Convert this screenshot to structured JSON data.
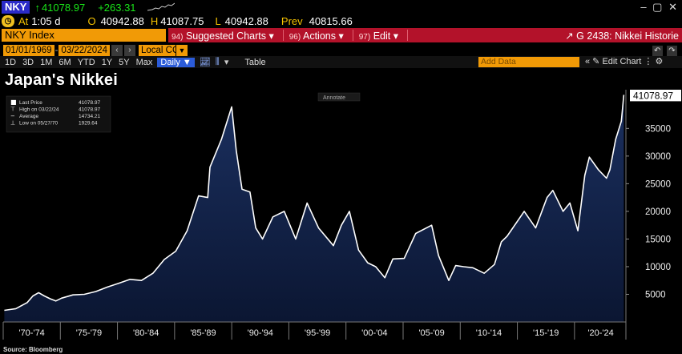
{
  "ticker": {
    "symbol": "NKY",
    "last": "41078.97",
    "change": "+263.31"
  },
  "quote": {
    "at_label": "At",
    "time": "1:05 d",
    "open_label": "O",
    "open": "40942.88",
    "high_label": "H",
    "high": "41087.75",
    "low_label": "L",
    "low": "40942.88",
    "prev_label": "Prev",
    "prev": "40815.66"
  },
  "window_controls": {
    "minimize": "–",
    "restore": "▢",
    "close": "✕"
  },
  "function_bar": {
    "index_name": "NKY Index",
    "menus": [
      {
        "num": "94)",
        "label": "Suggested Charts ▾"
      },
      {
        "num": "96)",
        "label": "Actions ▾"
      },
      {
        "num": "97)",
        "label": "Edit ▾"
      }
    ],
    "right_title": "G 2438: Nikkei Historie"
  },
  "date_controls": {
    "start": "01/01/1969",
    "end": "03/22/2024",
    "currency": "Local CCY"
  },
  "period_bar": {
    "periods": [
      "1D",
      "3D",
      "1M",
      "6M",
      "YTD",
      "1Y",
      "5Y",
      "Max"
    ],
    "frequency": "Daily ▼",
    "table": "Table",
    "add_data_placeholder": "Add Data",
    "edit_chart": "Edit Chart"
  },
  "chart_title": "Japan's Nikkei",
  "source": "Source: Bloomberg",
  "colors": {
    "orange": "#f19a06",
    "red_bar": "#b3122a",
    "green": "#19e619",
    "area_top": "#17284a",
    "area_bottom": "#0a1430"
  },
  "chart_data": {
    "type": "area",
    "title": "Japan's Nikkei",
    "series_name": "Last Price",
    "last_value_label": "41078.97",
    "legend": [
      {
        "label": "Last Price",
        "value": "41078.97"
      },
      {
        "label": "High on 03/22/24",
        "value": "41078.97"
      },
      {
        "label": "Average",
        "value": "14734.21"
      },
      {
        "label": "Low on 05/27/70",
        "value": "1929.64"
      }
    ],
    "annotate_label": "Annotate",
    "ylim": [
      0,
      42000
    ],
    "xlim": [
      1969.9,
      2024.4
    ],
    "y_ticks": [
      5000,
      10000,
      15000,
      20000,
      25000,
      30000,
      35000
    ],
    "y_tick_labels": [
      "5000",
      "10000",
      "15000",
      "20000",
      "25000",
      "30000",
      "35000"
    ],
    "x_tick_years": [
      1969.9,
      1974.9,
      1979.9,
      1984.9,
      1989.9,
      1994.9,
      1999.9,
      2004.9,
      2009.9,
      2014.9,
      2019.9,
      2024.4
    ],
    "x_label_years": [
      1972.4,
      1977.4,
      1982.4,
      1987.4,
      1992.4,
      1997.4,
      2002.4,
      2007.4,
      2012.4,
      2017.4,
      2022.2
    ],
    "x_labels": [
      "'70-'74",
      "'75-'79",
      "'80-'84",
      "'85-'89",
      "'90-'94",
      "'95-'99",
      "'00-'04",
      "'05-'09",
      "'10-'14",
      "'15-'19",
      "'20-'24"
    ],
    "x": [
      1970,
      1971,
      1972,
      1972.5,
      1973,
      1973.5,
      1974,
      1974.5,
      1975,
      1976,
      1977,
      1978,
      1979,
      1980,
      1981,
      1982,
      1983,
      1984,
      1985,
      1986,
      1987,
      1987.8,
      1988,
      1989,
      1989.9,
      1990.3,
      1990.8,
      1991.5,
      1992,
      1992.6,
      1993.5,
      1994.5,
      1995.5,
      1996.5,
      1997.5,
      1998.8,
      1999.5,
      2000.2,
      2001,
      2001.8,
      2002.5,
      2003.3,
      2004,
      2005,
      2006,
      2007.4,
      2008,
      2008.9,
      2009.5,
      2010.2,
      2011,
      2012,
      2012.9,
      2013.5,
      2014,
      2015.5,
      2016.5,
      2017.5,
      2018,
      2018.9,
      2019.5,
      2020.2,
      2020.8,
      2021.2,
      2022,
      2022.7,
      2023,
      2023.5,
      2024,
      2024.22
    ],
    "y": [
      2100,
      2400,
      3500,
      4700,
      5300,
      4700,
      4200,
      3800,
      4300,
      4900,
      5000,
      5500,
      6300,
      7000,
      7700,
      7500,
      8800,
      11300,
      12800,
      16500,
      22800,
      22500,
      28000,
      33000,
      38900,
      31000,
      24000,
      23500,
      17000,
      15000,
      19000,
      20000,
      15000,
      21500,
      17000,
      13800,
      17500,
      20000,
      13000,
      10700,
      10000,
      8000,
      11400,
      11500,
      16000,
      17500,
      12000,
      7500,
      10200,
      10000,
      9800,
      8800,
      10400,
      14500,
      15500,
      20000,
      17000,
      22500,
      23800,
      20000,
      21500,
      16500,
      26500,
      29800,
      27500,
      26000,
      27500,
      33000,
      36300,
      41078.97
    ]
  }
}
